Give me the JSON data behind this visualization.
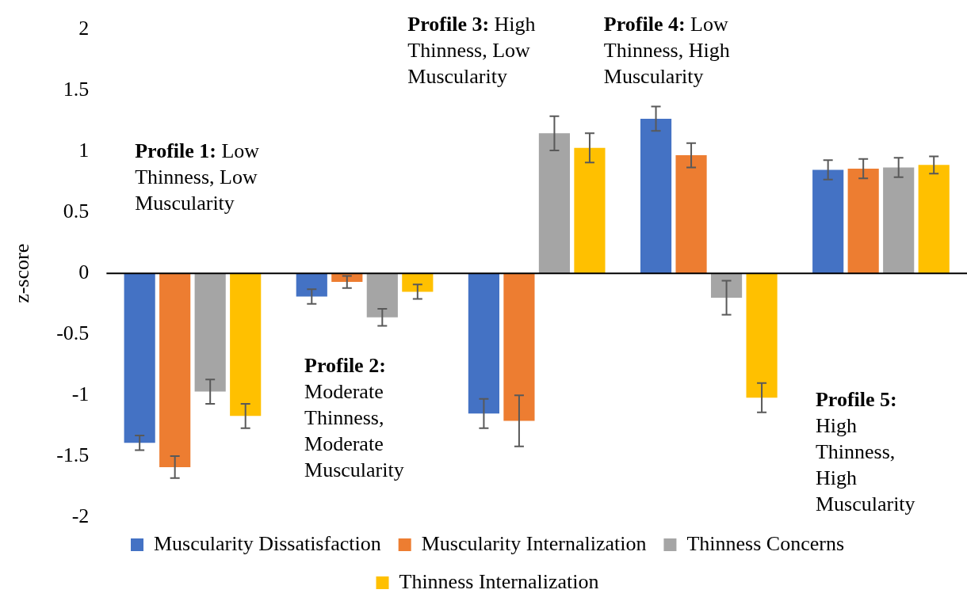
{
  "chart_data": {
    "type": "bar",
    "ylabel": "z-score",
    "categories": [
      null,
      null,
      null,
      null,
      null
    ],
    "series": [
      {
        "name": "Muscularity Dissatisfaction",
        "color": "#4472c4",
        "values": [
          -1.39,
          -0.19,
          -1.15,
          1.27,
          0.85
        ],
        "errors": [
          0.06,
          0.06,
          0.12,
          0.1,
          0.08
        ]
      },
      {
        "name": "Muscularity Internalization",
        "color": "#ed7d31",
        "values": [
          -1.59,
          -0.07,
          -1.21,
          0.97,
          0.86
        ],
        "errors": [
          0.09,
          0.05,
          0.21,
          0.1,
          0.08
        ]
      },
      {
        "name": "Thinness Concerns",
        "color": "#a5a5a5",
        "values": [
          -0.97,
          -0.36,
          1.15,
          -0.2,
          0.87
        ],
        "errors": [
          0.1,
          0.07,
          0.14,
          0.14,
          0.08
        ]
      },
      {
        "name": "Thinness Internalization",
        "color": "#ffc000",
        "values": [
          -1.17,
          -0.15,
          1.03,
          -1.02,
          0.89
        ],
        "errors": [
          0.1,
          0.06,
          0.12,
          0.12,
          0.07
        ]
      }
    ],
    "ylim": [
      -2,
      2
    ],
    "yticks": [
      -2,
      -1.5,
      -1,
      -0.5,
      0,
      0.5,
      1,
      1.5,
      2
    ],
    "legend": "bottom",
    "annotations": [
      "Profile 1: Low Thinness, Low Muscularity",
      "Profile 2: Moderate Thinness, Moderate Muscularity",
      "Profile 3: High Thinness, Low Muscularity",
      "Profile 4: Low Thinness, High Muscularity",
      "Profile 5: High Thinness, High Muscularity"
    ]
  }
}
